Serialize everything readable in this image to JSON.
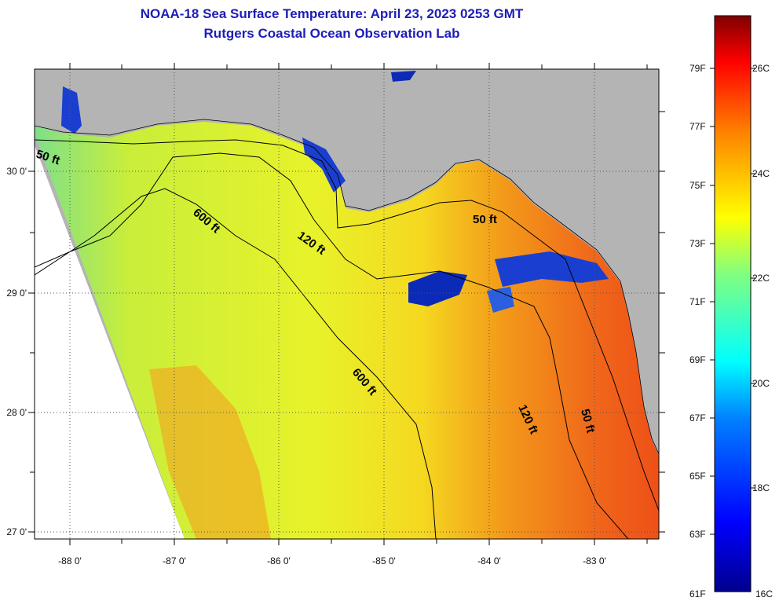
{
  "title": {
    "line1": "NOAA-18 Sea Surface Temperature:  April 23, 2023 0253 GMT",
    "line2": "Rutgers Coastal Ocean Observation Lab"
  },
  "map": {
    "lon_ticks": [
      "-88 0'",
      "-87 0'",
      "-86 0'",
      "-85 0'",
      "-84 0'",
      "-83 0'"
    ],
    "lat_ticks": [
      "30 0'",
      "29 0'",
      "28 0'",
      "27 0'"
    ],
    "contour_labels": [
      "50 ft",
      "600 ft",
      "120 ft",
      "50 ft",
      "600 ft",
      "120 ft",
      "50 ft"
    ],
    "colors": {
      "land": "#b4b4b4",
      "no_data": "#ffffff"
    }
  },
  "colorbar": {
    "f_labels": [
      "79F",
      "77F",
      "75F",
      "73F",
      "71F",
      "69F",
      "67F",
      "65F",
      "63F",
      "61F"
    ],
    "c_labels": [
      "26C",
      "24C",
      "22C",
      "20C",
      "18C",
      "16C"
    ]
  }
}
